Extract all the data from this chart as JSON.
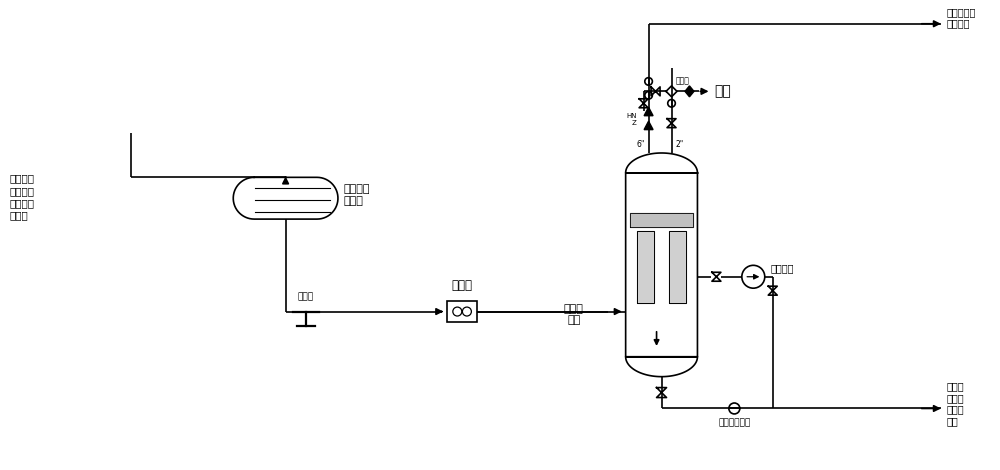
{
  "bg_color": "#ffffff",
  "line_color": "#000000",
  "gray_color": "#c0c0c0",
  "light_gray": "#d0d0d0",
  "blue_gray": "#b0c4d0",
  "fig_width": 10.0,
  "fig_height": 4.7,
  "labels": {
    "inlet": "裂解汽油\n自脱丁烷\n塔和汽油\n汽提塔",
    "cooler": "裂解汽油\n冷却器",
    "filter": "过滤器",
    "flowmeter": "流量计",
    "separator": "油水分\n离器",
    "outlet_top": "裂解汽油去\n汽油储罐",
    "flare": "火炬",
    "level_ctrl": "液位控制",
    "valve_water": "水液位调节阀",
    "outlet_bottom": "含油污\n水地槽\n或急冷\n水塔",
    "safety_valve": "安全阀",
    "pipe_6in": "6\"",
    "pipe_2in": "2\""
  }
}
